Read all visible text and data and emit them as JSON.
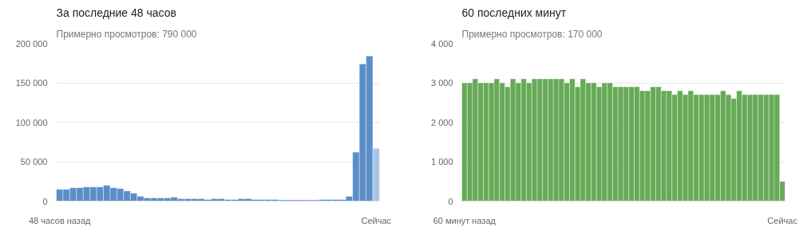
{
  "chart_data": [
    {
      "type": "bar",
      "title": "За последние 48 часов",
      "subtitle": "Примерно просмотров: 790 000",
      "categories": [
        "48 часов назад",
        null,
        null,
        null,
        null,
        null,
        null,
        null,
        null,
        null,
        null,
        null,
        null,
        null,
        null,
        null,
        null,
        null,
        null,
        null,
        null,
        null,
        null,
        null,
        null,
        null,
        null,
        null,
        null,
        null,
        null,
        null,
        null,
        null,
        null,
        null,
        null,
        null,
        null,
        null,
        null,
        null,
        null,
        null,
        null,
        null,
        null,
        "Сейчас"
      ],
      "values": [
        15000,
        15000,
        17000,
        17000,
        18000,
        18000,
        18000,
        20000,
        17000,
        16000,
        13000,
        10000,
        6000,
        4000,
        4000,
        4000,
        4000,
        5000,
        3000,
        3000,
        3000,
        3000,
        2000,
        3000,
        3000,
        2000,
        2000,
        3000,
        3000,
        2000,
        2000,
        2000,
        2000,
        1500,
        1500,
        1500,
        1500,
        1500,
        1500,
        2000,
        2000,
        2000,
        2000,
        6000,
        62000,
        174000,
        184000,
        67000
      ],
      "colors": [
        "#5b8ec9",
        "#5b8ec9",
        "#5b8ec9",
        "#5b8ec9",
        "#5b8ec9",
        "#5b8ec9",
        "#5b8ec9",
        "#5b8ec9",
        "#5b8ec9",
        "#5b8ec9",
        "#5b8ec9",
        "#5b8ec9",
        "#5b8ec9",
        "#5b8ec9",
        "#5b8ec9",
        "#5b8ec9",
        "#5b8ec9",
        "#5b8ec9",
        "#5b8ec9",
        "#5b8ec9",
        "#5b8ec9",
        "#5b8ec9",
        "#5b8ec9",
        "#5b8ec9",
        "#5b8ec9",
        "#5b8ec9",
        "#5b8ec9",
        "#5b8ec9",
        "#5b8ec9",
        "#5b8ec9",
        "#5b8ec9",
        "#5b8ec9",
        "#5b8ec9",
        "#5b8ec9",
        "#5b8ec9",
        "#5b8ec9",
        "#5b8ec9",
        "#5b8ec9",
        "#5b8ec9",
        "#5b8ec9",
        "#5b8ec9",
        "#5b8ec9",
        "#5b8ec9",
        "#5b8ec9",
        "#5b8ec9",
        "#5b8ec9",
        "#5b8ec9",
        "#a9c4e6"
      ],
      "ylim": [
        0,
        200000
      ],
      "yticks": [
        0,
        {
          "value": 50000,
          "label": "50 000"
        },
        {
          "value": 100000,
          "label": "100 000"
        },
        {
          "value": 150000,
          "label": "150 000"
        },
        {
          "value": 200000,
          "label": "200 000"
        }
      ],
      "grid": "y"
    },
    {
      "type": "bar",
      "title": "60 последних минут",
      "subtitle": "Примерно просмотров: 170 000",
      "categories": [
        "60 минут назад",
        null,
        null,
        null,
        null,
        null,
        null,
        null,
        null,
        null,
        null,
        null,
        null,
        null,
        null,
        null,
        null,
        null,
        null,
        null,
        null,
        null,
        null,
        null,
        null,
        null,
        null,
        null,
        null,
        null,
        null,
        null,
        null,
        null,
        null,
        null,
        null,
        null,
        null,
        null,
        null,
        null,
        null,
        null,
        null,
        null,
        null,
        null,
        null,
        null,
        null,
        null,
        null,
        null,
        null,
        null,
        null,
        null,
        null,
        "Сейчас"
      ],
      "values": [
        3000,
        3000,
        3100,
        3000,
        3000,
        3000,
        3100,
        3000,
        2900,
        3100,
        3000,
        3100,
        3000,
        3100,
        3100,
        3100,
        3100,
        3100,
        3100,
        3000,
        3100,
        2900,
        3100,
        3000,
        3000,
        2900,
        3000,
        3000,
        2900,
        2900,
        2900,
        2900,
        2900,
        2800,
        2800,
        2900,
        2900,
        2800,
        2800,
        2700,
        2800,
        2700,
        2800,
        2700,
        2700,
        2700,
        2700,
        2700,
        2800,
        2700,
        2600,
        2800,
        2700,
        2700,
        2700,
        2700,
        2700,
        2700,
        2700,
        500
      ],
      "color": "#67aa57",
      "ylim": [
        0,
        4000
      ],
      "yticks": [
        0,
        {
          "value": 1000,
          "label": "1 000"
        },
        {
          "value": 2000,
          "label": "2 000"
        },
        {
          "value": 3000,
          "label": "3 000"
        },
        {
          "value": 4000,
          "label": "4 000"
        }
      ],
      "grid": "y"
    }
  ]
}
